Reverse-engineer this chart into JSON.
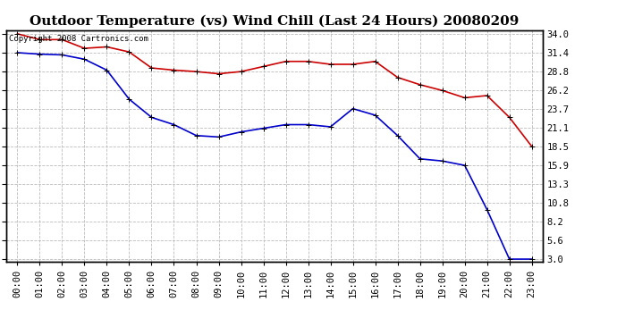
{
  "title": "Outdoor Temperature (vs) Wind Chill (Last 24 Hours) 20080209",
  "copyright_text": "Copyright 2008 Cartronics.com",
  "x_labels": [
    "00:00",
    "01:00",
    "02:00",
    "03:00",
    "04:00",
    "05:00",
    "06:00",
    "07:00",
    "08:00",
    "09:00",
    "10:00",
    "11:00",
    "12:00",
    "13:00",
    "14:00",
    "15:00",
    "16:00",
    "17:00",
    "18:00",
    "19:00",
    "20:00",
    "21:00",
    "22:00",
    "23:00"
  ],
  "temp_values": [
    34.0,
    33.2,
    33.2,
    32.0,
    32.2,
    31.5,
    29.3,
    29.0,
    28.8,
    28.5,
    28.8,
    29.5,
    30.2,
    30.2,
    29.8,
    29.8,
    30.2,
    28.0,
    27.0,
    26.2,
    25.2,
    25.5,
    22.5,
    18.5
  ],
  "windchill_values": [
    31.4,
    31.2,
    31.1,
    30.5,
    29.0,
    25.0,
    22.5,
    21.5,
    20.0,
    19.8,
    20.5,
    21.0,
    21.5,
    21.5,
    21.2,
    23.7,
    22.8,
    20.0,
    16.8,
    16.5,
    15.9,
    9.8,
    3.0,
    3.0
  ],
  "temp_color": "#cc0000",
  "windchill_color": "#0000cc",
  "background_color": "#ffffff",
  "plot_bg_color": "#ffffff",
  "grid_color": "#bbbbbb",
  "ylim_min": 3.0,
  "ylim_max": 34.0,
  "yticks": [
    3.0,
    5.6,
    8.2,
    10.8,
    13.3,
    15.9,
    18.5,
    21.1,
    23.7,
    26.2,
    28.8,
    31.4,
    34.0
  ],
  "title_fontsize": 11,
  "tick_fontsize": 7.5,
  "copyright_fontsize": 6.5,
  "marker_size": 4,
  "line_width": 1.2
}
